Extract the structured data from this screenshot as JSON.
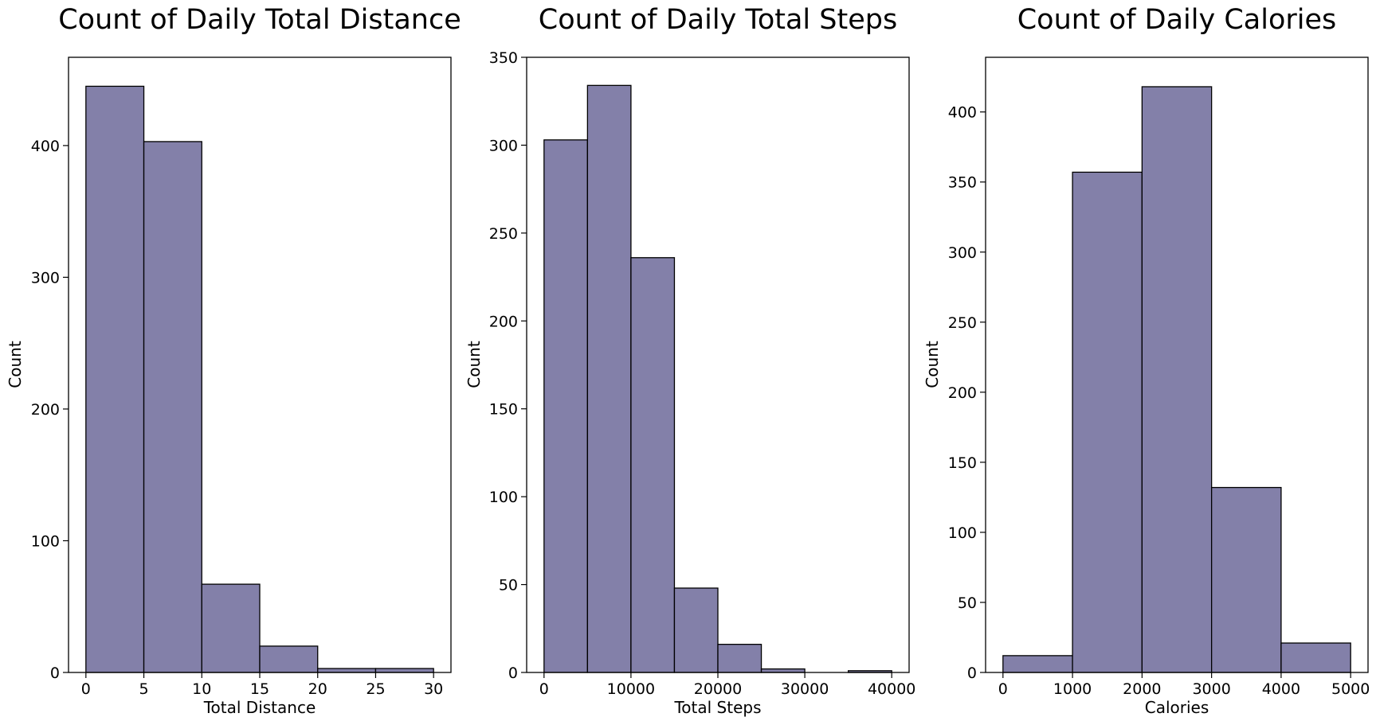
{
  "chart_data": [
    {
      "type": "bar",
      "title": "Count of Daily Total Distance",
      "xlabel": "Total Distance",
      "ylabel": "Count",
      "bin_edges": [
        0,
        5,
        10,
        15,
        20,
        25,
        30
      ],
      "values": [
        445,
        403,
        67,
        20,
        3,
        3
      ],
      "xticks": [
        0,
        5,
        10,
        15,
        20,
        25,
        30
      ],
      "yticks": [
        0,
        100,
        200,
        300,
        400
      ],
      "xlim": [
        -1.5,
        31.5
      ],
      "ylim": [
        0,
        467
      ],
      "bar_color": "#8380a9",
      "edge_color": "#000000",
      "grid": false
    },
    {
      "type": "bar",
      "title": "Count of Daily Total Steps",
      "xlabel": "Total Steps",
      "ylabel": "Count",
      "bin_edges": [
        0,
        5000,
        10000,
        15000,
        20000,
        25000,
        30000,
        35000,
        40000
      ],
      "values": [
        303,
        334,
        236,
        48,
        16,
        2,
        0,
        1
      ],
      "xticks": [
        0,
        10000,
        20000,
        30000,
        40000
      ],
      "yticks": [
        0,
        50,
        100,
        150,
        200,
        250,
        300,
        350
      ],
      "xlim": [
        -2000,
        42000
      ],
      "ylim": [
        0,
        350
      ],
      "bar_color": "#8380a9",
      "edge_color": "#000000",
      "grid": false
    },
    {
      "type": "bar",
      "title": "Count of Daily Calories",
      "xlabel": "Calories",
      "ylabel": "Count",
      "bin_edges": [
        0,
        1000,
        2000,
        3000,
        4000,
        5000
      ],
      "values": [
        12,
        357,
        418,
        132,
        21
      ],
      "xticks": [
        0,
        1000,
        2000,
        3000,
        4000,
        5000
      ],
      "yticks": [
        0,
        50,
        100,
        150,
        200,
        250,
        300,
        350,
        400
      ],
      "xlim": [
        -250,
        5250
      ],
      "ylim": [
        0,
        439
      ],
      "bar_color": "#8380a9",
      "edge_color": "#000000",
      "grid": false
    }
  ]
}
